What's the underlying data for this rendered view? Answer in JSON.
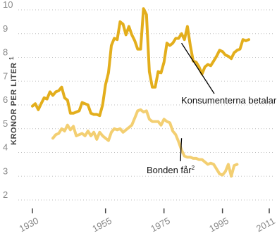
{
  "chart_data": {
    "type": "line",
    "title": "",
    "ylabel": "KRONOR PER LITER",
    "ylabel_footnote": "1",
    "xlabel": "",
    "xlim": [
      1930,
      2011
    ],
    "ylim": [
      2,
      10
    ],
    "y_ticks": [
      "2",
      "3",
      "4",
      "5",
      "6",
      "7",
      "8",
      "9",
      "10"
    ],
    "x_ticks": [
      "1930",
      "1955",
      "1975",
      "1995",
      "2011"
    ],
    "grid": true,
    "legend": "none",
    "series": [
      {
        "name": "Konsumenterna betalar",
        "color": "#e3ae1c",
        "points": [
          [
            1930,
            5.95
          ],
          [
            1931,
            6.05
          ],
          [
            1932,
            5.8
          ],
          [
            1933,
            6.05
          ],
          [
            1934,
            6.3
          ],
          [
            1935,
            6.25
          ],
          [
            1936,
            6.55
          ],
          [
            1937,
            6.4
          ],
          [
            1938,
            6.55
          ],
          [
            1939,
            6.6
          ],
          [
            1940,
            6.75
          ],
          [
            1941,
            6.3
          ],
          [
            1942,
            6.2
          ],
          [
            1943,
            5.65
          ],
          [
            1944,
            5.65
          ],
          [
            1945,
            5.7
          ],
          [
            1946,
            5.75
          ],
          [
            1947,
            6.1
          ],
          [
            1948,
            6.05
          ],
          [
            1949,
            6.0
          ],
          [
            1950,
            5.65
          ],
          [
            1951,
            5.6
          ],
          [
            1952,
            5.6
          ],
          [
            1953,
            5.55
          ],
          [
            1954,
            6.0
          ],
          [
            1955,
            6.85
          ],
          [
            1956,
            7.35
          ],
          [
            1957,
            8.5
          ],
          [
            1958,
            8.8
          ],
          [
            1959,
            8.75
          ],
          [
            1960,
            9.5
          ],
          [
            1961,
            9.4
          ],
          [
            1962,
            8.95
          ],
          [
            1963,
            9.3
          ],
          [
            1964,
            8.95
          ],
          [
            1965,
            8.7
          ],
          [
            1966,
            8.35
          ],
          [
            1967,
            8.35
          ],
          [
            1968,
            10.05
          ],
          [
            1969,
            9.8
          ],
          [
            1970,
            7.4
          ],
          [
            1971,
            6.75
          ],
          [
            1972,
            6.75
          ],
          [
            1973,
            7.4
          ],
          [
            1974,
            7.35
          ],
          [
            1975,
            7.8
          ],
          [
            1976,
            8.6
          ],
          [
            1977,
            8.5
          ],
          [
            1978,
            8.6
          ],
          [
            1979,
            8.8
          ],
          [
            1980,
            8.8
          ],
          [
            1981,
            9.0
          ],
          [
            1982,
            8.75
          ],
          [
            1983,
            9.3
          ],
          [
            1984,
            8.5
          ],
          [
            1985,
            7.85
          ],
          [
            1986,
            7.8
          ],
          [
            1987,
            7.6
          ],
          [
            1988,
            7.3
          ],
          [
            1989,
            7.6
          ],
          [
            1990,
            7.7
          ],
          [
            1991,
            7.65
          ],
          [
            1992,
            7.85
          ],
          [
            1993,
            8.05
          ],
          [
            1994,
            8.3
          ],
          [
            1995,
            8.25
          ],
          [
            1996,
            8.1
          ],
          [
            1997,
            8.05
          ],
          [
            1998,
            7.95
          ],
          [
            1999,
            8.2
          ],
          [
            2000,
            8.3
          ],
          [
            2001,
            8.35
          ],
          [
            2002,
            8.75
          ],
          [
            2003,
            8.7
          ],
          [
            2004,
            8.75
          ]
        ]
      },
      {
        "name": "Bonden får",
        "name_footnote": "2",
        "color": "#f3cf72",
        "points": [
          [
            1937,
            4.6
          ],
          [
            1938,
            4.75
          ],
          [
            1939,
            4.8
          ],
          [
            1940,
            5.0
          ],
          [
            1941,
            4.9
          ],
          [
            1942,
            5.15
          ],
          [
            1943,
            4.95
          ],
          [
            1944,
            5.1
          ],
          [
            1945,
            4.7
          ],
          [
            1946,
            4.75
          ],
          [
            1947,
            4.8
          ],
          [
            1948,
            4.7
          ],
          [
            1949,
            4.9
          ],
          [
            1950,
            4.7
          ],
          [
            1951,
            4.85
          ],
          [
            1952,
            4.55
          ],
          [
            1953,
            4.85
          ],
          [
            1954,
            4.7
          ],
          [
            1955,
            4.6
          ],
          [
            1956,
            4.5
          ],
          [
            1957,
            4.85
          ],
          [
            1958,
            5.0
          ],
          [
            1959,
            4.95
          ],
          [
            1960,
            5.0
          ],
          [
            1961,
            4.85
          ],
          [
            1962,
            4.95
          ],
          [
            1963,
            5.05
          ],
          [
            1964,
            5.15
          ],
          [
            1965,
            5.45
          ],
          [
            1966,
            5.75
          ],
          [
            1967,
            5.8
          ],
          [
            1968,
            5.7
          ],
          [
            1969,
            5.75
          ],
          [
            1970,
            5.4
          ],
          [
            1971,
            5.3
          ],
          [
            1972,
            5.3
          ],
          [
            1973,
            5.3
          ],
          [
            1974,
            5.15
          ],
          [
            1975,
            5.4
          ],
          [
            1976,
            5.3
          ],
          [
            1977,
            5.25
          ],
          [
            1978,
            4.9
          ],
          [
            1979,
            4.75
          ],
          [
            1980,
            4.45
          ],
          [
            1981,
            4.1
          ],
          [
            1982,
            3.85
          ],
          [
            1983,
            3.8
          ],
          [
            1984,
            3.8
          ],
          [
            1985,
            3.75
          ],
          [
            1986,
            3.75
          ],
          [
            1987,
            3.7
          ],
          [
            1988,
            3.7
          ],
          [
            1989,
            3.6
          ],
          [
            1990,
            3.5
          ],
          [
            1991,
            3.55
          ],
          [
            1992,
            3.5
          ],
          [
            1993,
            3.3
          ],
          [
            1994,
            3.1
          ],
          [
            1995,
            3.05
          ],
          [
            1996,
            3.2
          ],
          [
            1997,
            3.5
          ],
          [
            1998,
            3.0
          ],
          [
            1999,
            3.45
          ],
          [
            2000,
            3.5
          ]
        ]
      }
    ],
    "annotations": [
      {
        "text": "Konsumenterna betalar",
        "series": "Konsumenterna betalar",
        "points_to": [
          1981,
          8.6
        ]
      },
      {
        "text": "Bonden får",
        "footnote": "2",
        "series": "Bonden får",
        "points_to": [
          1981,
          4.6
        ]
      }
    ]
  }
}
